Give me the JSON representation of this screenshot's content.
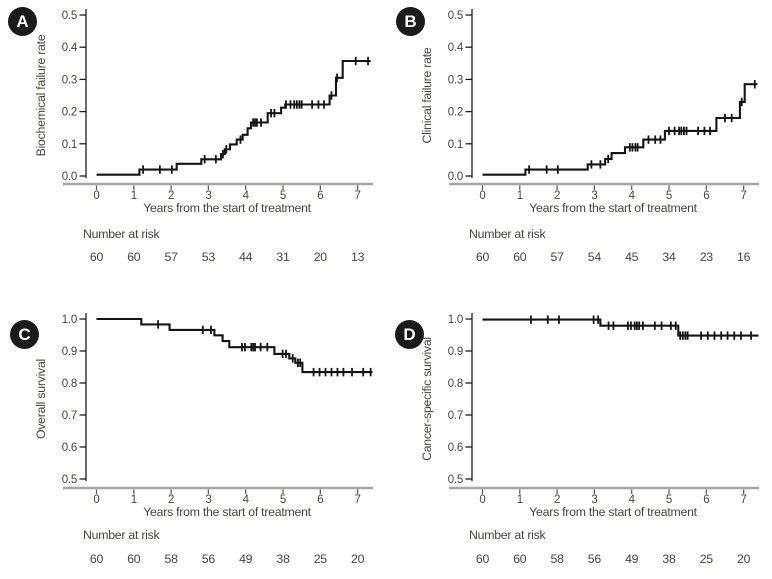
{
  "figure": {
    "background": "#ffffff",
    "text_color": "#45453c",
    "curve_color": "#141414",
    "x_axis_line_color": "#a6a6a6",
    "y_axis_line_color": "#1c1c1c",
    "panel_badge_bg": "#1a1a1a",
    "panel_badge_fg": "#ffffff"
  },
  "chart_data": [
    {
      "panel": "A",
      "type": "line",
      "subtype": "kaplan-meier-step",
      "ylabel": "Biochemical failure rate",
      "xlabel": "Years from the start of treatment",
      "ylim": [
        0.0,
        0.5
      ],
      "yticks": [
        0.0,
        0.1,
        0.2,
        0.3,
        0.4,
        0.5
      ],
      "xticks": [
        0,
        1,
        2,
        3,
        4,
        5,
        6,
        7
      ],
      "start_value": 0.004,
      "end_x": 7.35,
      "steps": [
        [
          1.15,
          0.02
        ],
        [
          2.15,
          0.038
        ],
        [
          2.81,
          0.052
        ],
        [
          3.34,
          0.068
        ],
        [
          3.44,
          0.083
        ],
        [
          3.58,
          0.098
        ],
        [
          3.76,
          0.113
        ],
        [
          3.92,
          0.128
        ],
        [
          4.05,
          0.148
        ],
        [
          4.14,
          0.166
        ],
        [
          4.59,
          0.195
        ],
        [
          4.95,
          0.212
        ],
        [
          5.06,
          0.222
        ],
        [
          6.25,
          0.25
        ],
        [
          6.42,
          0.305
        ],
        [
          6.6,
          0.357
        ]
      ],
      "censor_x": [
        1.25,
        1.7,
        2.02,
        2.9,
        3.2,
        3.39,
        3.48,
        3.86,
        4.2,
        4.25,
        4.3,
        4.41,
        4.68,
        4.77,
        5.08,
        5.2,
        5.3,
        5.37,
        5.44,
        5.5,
        5.78,
        5.95,
        6.1,
        6.3,
        6.45,
        6.95,
        7.28
      ],
      "number_at_risk_label": "Number at risk",
      "number_at_risk": [
        60,
        60,
        57,
        53,
        44,
        31,
        20,
        13
      ]
    },
    {
      "panel": "B",
      "type": "line",
      "subtype": "kaplan-meier-step",
      "ylabel": "Clinical failure rate",
      "xlabel": "Years from the start of treatment",
      "ylim": [
        0.0,
        0.5
      ],
      "yticks": [
        0.0,
        0.1,
        0.2,
        0.3,
        0.4,
        0.5
      ],
      "xticks": [
        0,
        1,
        2,
        3,
        4,
        5,
        6,
        7
      ],
      "start_value": 0.004,
      "end_x": 7.37,
      "steps": [
        [
          1.15,
          0.02
        ],
        [
          2.82,
          0.036
        ],
        [
          3.29,
          0.053
        ],
        [
          3.46,
          0.071
        ],
        [
          3.82,
          0.089
        ],
        [
          4.31,
          0.113
        ],
        [
          4.89,
          0.14
        ],
        [
          6.27,
          0.18
        ],
        [
          6.9,
          0.23
        ],
        [
          7.03,
          0.285
        ]
      ],
      "censor_x": [
        1.25,
        1.72,
        2.02,
        2.92,
        3.16,
        3.37,
        3.95,
        4.02,
        4.1,
        4.16,
        4.45,
        4.63,
        4.77,
        5.0,
        5.15,
        5.27,
        5.33,
        5.4,
        5.47,
        5.78,
        5.95,
        6.1,
        6.5,
        6.68,
        6.95,
        7.3
      ],
      "number_at_risk_label": "Number at risk",
      "number_at_risk": [
        60,
        60,
        57,
        54,
        45,
        34,
        23,
        16
      ]
    },
    {
      "panel": "C",
      "type": "line",
      "subtype": "kaplan-meier-step",
      "ylabel": "Overall survival",
      "xlabel": "Years from the start of treatment",
      "ylim": [
        0.5,
        1.0
      ],
      "yticks": [
        0.5,
        0.6,
        0.7,
        0.8,
        0.9,
        1.0
      ],
      "xticks": [
        0,
        1,
        2,
        3,
        4,
        5,
        6,
        7
      ],
      "start_value": 1.0,
      "end_x": 7.4,
      "steps": [
        [
          1.2,
          0.983
        ],
        [
          1.96,
          0.966
        ],
        [
          3.16,
          0.949
        ],
        [
          3.38,
          0.931
        ],
        [
          3.56,
          0.912
        ],
        [
          4.77,
          0.891
        ],
        [
          5.17,
          0.877
        ],
        [
          5.33,
          0.863
        ],
        [
          5.52,
          0.834
        ]
      ],
      "censor_x": [
        1.65,
        2.85,
        3.07,
        3.9,
        3.98,
        4.15,
        4.2,
        4.25,
        4.4,
        4.58,
        4.99,
        5.08,
        5.26,
        5.4,
        5.46,
        5.82,
        5.98,
        6.14,
        6.3,
        6.46,
        6.62,
        6.85,
        7.15,
        7.35
      ],
      "number_at_risk_label": "Number at risk",
      "number_at_risk": [
        60,
        60,
        58,
        56,
        49,
        38,
        25,
        20
      ]
    },
    {
      "panel": "D",
      "type": "line",
      "subtype": "kaplan-meier-step",
      "ylabel": "Cancer-specific survival",
      "xlabel": "Years from the start of treatment",
      "ylim": [
        0.5,
        1.0
      ],
      "yticks": [
        0.5,
        0.6,
        0.7,
        0.8,
        0.9,
        1.0
      ],
      "xticks": [
        0,
        1,
        2,
        3,
        4,
        5,
        6,
        7
      ],
      "start_value": 0.998,
      "end_x": 7.4,
      "steps": [
        [
          3.16,
          0.979
        ],
        [
          5.25,
          0.948
        ]
      ],
      "censor_x": [
        1.3,
        1.75,
        2.05,
        2.98,
        3.1,
        3.38,
        3.51,
        3.9,
        3.98,
        4.08,
        4.14,
        4.2,
        4.3,
        4.62,
        4.8,
        5.05,
        5.18,
        5.3,
        5.37,
        5.44,
        5.5,
        5.86,
        6.04,
        6.22,
        6.4,
        6.57,
        6.75,
        6.93,
        7.2
      ],
      "number_at_risk_label": "Number at risk",
      "number_at_risk": [
        60,
        60,
        58,
        56,
        49,
        38,
        25,
        20
      ]
    }
  ]
}
